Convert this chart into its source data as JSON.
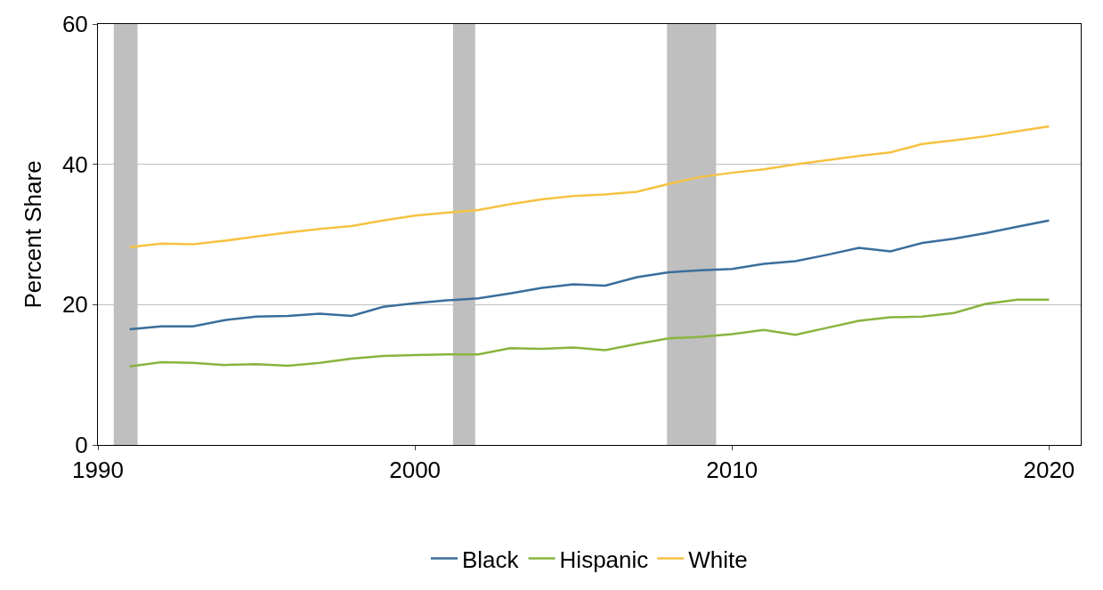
{
  "chart_data": {
    "type": "line",
    "ylabel": "Percent Share",
    "x": [
      1991,
      1992,
      1993,
      1994,
      1995,
      1996,
      1997,
      1998,
      1999,
      2000,
      2001,
      2002,
      2003,
      2004,
      2005,
      2006,
      2007,
      2008,
      2009,
      2010,
      2011,
      2012,
      2013,
      2014,
      2015,
      2016,
      2017,
      2018,
      2019,
      2020
    ],
    "series": [
      {
        "name": "Black",
        "color": "#3a6e9c",
        "values": [
          16.5,
          16.9,
          16.9,
          17.8,
          18.3,
          18.4,
          18.7,
          18.4,
          19.7,
          20.2,
          20.6,
          20.9,
          21.6,
          22.4,
          22.9,
          22.7,
          23.9,
          24.6,
          24.9,
          25.1,
          25.8,
          26.2,
          27.1,
          28.1,
          27.6,
          28.8,
          29.4,
          30.2,
          31.1,
          32.0
        ]
      },
      {
        "name": "Hispanic",
        "color": "#8ab43f",
        "values": [
          11.2,
          11.8,
          11.7,
          11.4,
          11.5,
          11.3,
          11.7,
          12.3,
          12.7,
          12.8,
          12.9,
          12.9,
          13.8,
          13.7,
          13.9,
          13.5,
          14.4,
          15.2,
          15.4,
          15.8,
          16.4,
          15.7,
          16.7,
          17.7,
          18.2,
          18.3,
          18.8,
          20.1,
          20.7,
          20.7
        ]
      },
      {
        "name": "White",
        "color": "#f5c242",
        "values": [
          28.2,
          28.7,
          28.6,
          29.1,
          29.7,
          30.3,
          30.8,
          31.2,
          32.0,
          32.7,
          33.1,
          33.5,
          34.3,
          35.0,
          35.5,
          35.7,
          36.1,
          37.2,
          38.2,
          38.8,
          39.3,
          40.0,
          40.6,
          41.2,
          41.7,
          42.9,
          43.4,
          44.0,
          44.7,
          45.4
        ]
      }
    ],
    "bands": [
      {
        "axis": "x",
        "from": 1990.5,
        "to": 1991.25,
        "label": null,
        "color": "#bfbfbf"
      },
      {
        "axis": "x",
        "from": 2001.2,
        "to": 2001.9,
        "label": null,
        "color": "#bfbfbf"
      },
      {
        "axis": "x",
        "from": 2007.95,
        "to": 2009.5,
        "label": null,
        "color": "#bfbfbf"
      }
    ],
    "xlim": [
      1990,
      2021
    ],
    "xticks": [
      1990,
      2000,
      2010,
      2020
    ],
    "ylim": [
      0,
      60
    ],
    "yticks": [
      0,
      20,
      40,
      60
    ],
    "grid": "y",
    "legend": "bottom",
    "marker": "none",
    "line_style": "solid"
  }
}
